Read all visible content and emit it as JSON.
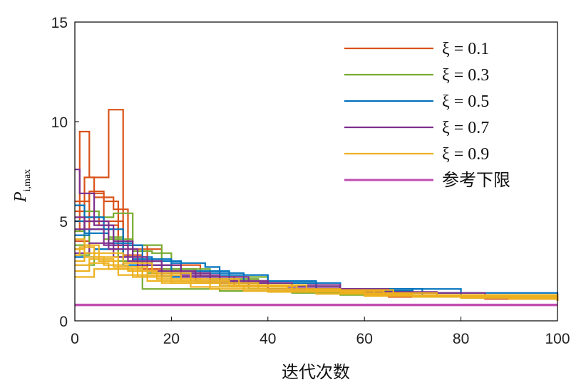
{
  "chart_data": {
    "type": "line",
    "title": "",
    "xlabel": "迭代次数",
    "ylabel": "P",
    "ylabel_subscript": "i,max",
    "xlim": [
      0,
      100
    ],
    "ylim": [
      0,
      15
    ],
    "x_ticks": [
      "0",
      "20",
      "40",
      "60",
      "80",
      "100"
    ],
    "y_ticks": [
      "0",
      "5",
      "10",
      "15"
    ],
    "grid": false,
    "legend_position": "top-right",
    "series": [
      {
        "name": "ξ = 0.1",
        "color": "#d95319",
        "runs": [
          [
            [
              0,
              4.5
            ],
            [
              1,
              9.5
            ],
            [
              3,
              7.2
            ],
            [
              7,
              7.2
            ],
            [
              7,
              10.6
            ],
            [
              10,
              3.3
            ],
            [
              14,
              2.8
            ],
            [
              22,
              2.3
            ],
            [
              30,
              2.0
            ],
            [
              40,
              1.7
            ],
            [
              55,
              1.4
            ],
            [
              70,
              1.2
            ],
            [
              100,
              1.0
            ]
          ],
          [
            [
              0,
              5.5
            ],
            [
              2,
              7.2
            ],
            [
              4,
              6.2
            ],
            [
              8,
              5.6
            ],
            [
              11,
              3.6
            ],
            [
              18,
              2.8
            ],
            [
              26,
              2.2
            ],
            [
              35,
              1.9
            ],
            [
              50,
              1.5
            ],
            [
              65,
              1.3
            ],
            [
              85,
              1.1
            ],
            [
              100,
              1.0
            ]
          ],
          [
            [
              0,
              6.0
            ],
            [
              3,
              6.5
            ],
            [
              6,
              6.0
            ],
            [
              9,
              3.2
            ],
            [
              13,
              2.6
            ],
            [
              20,
              2.2
            ],
            [
              33,
              1.8
            ],
            [
              48,
              1.5
            ],
            [
              70,
              1.2
            ],
            [
              100,
              1.05
            ]
          ],
          [
            [
              0,
              3.6
            ],
            [
              2,
              5.2
            ],
            [
              5,
              4.8
            ],
            [
              9,
              3.8
            ],
            [
              15,
              2.6
            ],
            [
              25,
              2.0
            ],
            [
              40,
              1.6
            ],
            [
              60,
              1.3
            ],
            [
              100,
              1.0
            ]
          ],
          [
            [
              0,
              4.0
            ],
            [
              3,
              6.4
            ],
            [
              6,
              5.0
            ],
            [
              10,
              3.0
            ],
            [
              16,
              2.4
            ],
            [
              28,
              1.9
            ],
            [
              45,
              1.5
            ],
            [
              65,
              1.2
            ],
            [
              100,
              1.0
            ]
          ]
        ]
      },
      {
        "name": "ξ = 0.3",
        "color": "#77ac30",
        "runs": [
          [
            [
              0,
              3.8
            ],
            [
              2,
              5.5
            ],
            [
              5,
              5.2
            ],
            [
              8,
              5.4
            ],
            [
              12,
              3.5
            ],
            [
              16,
              3.4
            ],
            [
              20,
              2.6
            ],
            [
              28,
              2.1
            ],
            [
              38,
              1.8
            ],
            [
              50,
              1.5
            ],
            [
              70,
              1.2
            ],
            [
              100,
              1.0
            ]
          ],
          [
            [
              0,
              3.3
            ],
            [
              3,
              4.6
            ],
            [
              7,
              4.2
            ],
            [
              10,
              3.0
            ],
            [
              14,
              1.6
            ],
            [
              20,
              1.6
            ],
            [
              30,
              1.5
            ],
            [
              45,
              1.4
            ],
            [
              60,
              1.3
            ],
            [
              100,
              1.05
            ]
          ],
          [
            [
              0,
              4.5
            ],
            [
              2,
              5.0
            ],
            [
              6,
              4.1
            ],
            [
              12,
              3.8
            ],
            [
              18,
              2.6
            ],
            [
              25,
              2.2
            ],
            [
              40,
              1.7
            ],
            [
              55,
              1.4
            ],
            [
              80,
              1.15
            ],
            [
              100,
              1.0
            ]
          ],
          [
            [
              0,
              2.8
            ],
            [
              4,
              3.6
            ],
            [
              9,
              3.0
            ],
            [
              15,
              2.4
            ],
            [
              24,
              1.9
            ],
            [
              36,
              1.6
            ],
            [
              55,
              1.3
            ],
            [
              100,
              1.0
            ]
          ]
        ]
      },
      {
        "name": "ξ = 0.5",
        "color": "#0072bd",
        "runs": [
          [
            [
              0,
              5.8
            ],
            [
              2,
              5.2
            ],
            [
              6,
              4.6
            ],
            [
              10,
              3.2
            ],
            [
              16,
              2.8
            ],
            [
              20,
              2.9
            ],
            [
              27,
              2.7
            ],
            [
              30,
              2.3
            ],
            [
              40,
              1.9
            ],
            [
              55,
              1.6
            ],
            [
              70,
              1.4
            ],
            [
              100,
              1.15
            ]
          ],
          [
            [
              0,
              4.3
            ],
            [
              3,
              4.6
            ],
            [
              8,
              3.8
            ],
            [
              14,
              3.0
            ],
            [
              22,
              2.4
            ],
            [
              35,
              1.9
            ],
            [
              50,
              1.6
            ],
            [
              72,
              1.3
            ],
            [
              100,
              1.15
            ]
          ],
          [
            [
              0,
              3.2
            ],
            [
              4,
              3.6
            ],
            [
              10,
              2.8
            ],
            [
              18,
              2.2
            ],
            [
              30,
              1.8
            ],
            [
              48,
              1.5
            ],
            [
              70,
              1.25
            ],
            [
              100,
              1.1
            ]
          ],
          [
            [
              0,
              5.0
            ],
            [
              2,
              4.4
            ],
            [
              7,
              3.9
            ],
            [
              12,
              3.1
            ],
            [
              20,
              2.5
            ],
            [
              32,
              2.0
            ],
            [
              50,
              1.6
            ],
            [
              80,
              1.2
            ],
            [
              100,
              1.1
            ]
          ]
        ]
      },
      {
        "name": "ξ = 0.7",
        "color": "#7e2f8e",
        "runs": [
          [
            [
              0,
              7.6
            ],
            [
              1,
              6.4
            ],
            [
              4,
              4.8
            ],
            [
              8,
              4.0
            ],
            [
              12,
              3.0
            ],
            [
              18,
              2.4
            ],
            [
              28,
              2.0
            ],
            [
              40,
              1.7
            ],
            [
              55,
              1.45
            ],
            [
              75,
              1.2
            ],
            [
              100,
              1.05
            ]
          ],
          [
            [
              0,
              5.2
            ],
            [
              2,
              4.6
            ],
            [
              6,
              3.8
            ],
            [
              11,
              3.0
            ],
            [
              18,
              2.3
            ],
            [
              30,
              1.9
            ],
            [
              45,
              1.6
            ],
            [
              65,
              1.3
            ],
            [
              100,
              1.05
            ]
          ],
          [
            [
              0,
              3.4
            ],
            [
              3,
              3.9
            ],
            [
              8,
              3.2
            ],
            [
              15,
              2.5
            ],
            [
              25,
              2.0
            ],
            [
              40,
              1.6
            ],
            [
              60,
              1.3
            ],
            [
              100,
              1.0
            ]
          ],
          [
            [
              0,
              4.6
            ],
            [
              2,
              5.0
            ],
            [
              7,
              3.6
            ],
            [
              13,
              2.8
            ],
            [
              22,
              2.2
            ],
            [
              36,
              1.8
            ],
            [
              55,
              1.4
            ],
            [
              85,
              1.15
            ],
            [
              100,
              1.05
            ]
          ]
        ]
      },
      {
        "name": "ξ = 0.9",
        "color": "#edb120",
        "runs": [
          [
            [
              0,
              3.0
            ],
            [
              2,
              3.4
            ],
            [
              5,
              3.0
            ],
            [
              9,
              2.6
            ],
            [
              14,
              2.3
            ],
            [
              20,
              2.0
            ],
            [
              30,
              1.8
            ],
            [
              45,
              1.5
            ],
            [
              60,
              1.3
            ],
            [
              80,
              1.15
            ],
            [
              100,
              1.0
            ]
          ],
          [
            [
              0,
              2.5
            ],
            [
              3,
              2.9
            ],
            [
              7,
              2.6
            ],
            [
              12,
              2.2
            ],
            [
              18,
              1.9
            ],
            [
              28,
              1.6
            ],
            [
              40,
              1.45
            ],
            [
              60,
              1.25
            ],
            [
              100,
              1.0
            ]
          ],
          [
            [
              0,
              3.6
            ],
            [
              2,
              3.2
            ],
            [
              6,
              2.8
            ],
            [
              11,
              2.5
            ],
            [
              17,
              2.1
            ],
            [
              26,
              1.9
            ],
            [
              38,
              1.6
            ],
            [
              55,
              1.4
            ],
            [
              75,
              1.2
            ],
            [
              100,
              1.05
            ]
          ],
          [
            [
              0,
              2.2
            ],
            [
              4,
              2.6
            ],
            [
              9,
              2.3
            ],
            [
              15,
              2.0
            ],
            [
              24,
              1.7
            ],
            [
              35,
              1.5
            ],
            [
              50,
              1.35
            ],
            [
              70,
              1.2
            ],
            [
              100,
              1.0
            ]
          ],
          [
            [
              0,
              4.1
            ],
            [
              2,
              3.8
            ],
            [
              5,
              3.4
            ],
            [
              10,
              2.9
            ],
            [
              16,
              2.4
            ],
            [
              24,
              2.1
            ],
            [
              34,
              1.8
            ],
            [
              48,
              1.55
            ],
            [
              66,
              1.3
            ],
            [
              100,
              1.05
            ]
          ],
          [
            [
              0,
              2.8
            ],
            [
              3,
              3.1
            ],
            [
              8,
              2.7
            ],
            [
              13,
              2.2
            ],
            [
              20,
              1.9
            ],
            [
              30,
              1.7
            ],
            [
              44,
              1.5
            ],
            [
              62,
              1.3
            ],
            [
              100,
              1.0
            ]
          ],
          [
            [
              0,
              3.3
            ],
            [
              1,
              3.7
            ],
            [
              4,
              3.2
            ],
            [
              9,
              2.7
            ],
            [
              15,
              2.3
            ],
            [
              22,
              2.0
            ],
            [
              32,
              1.75
            ],
            [
              46,
              1.5
            ],
            [
              64,
              1.3
            ],
            [
              90,
              1.1
            ],
            [
              100,
              1.0
            ]
          ]
        ]
      },
      {
        "name": "参考下限",
        "color": "#c04fb0",
        "runs": [
          [
            [
              0,
              0.8
            ],
            [
              100,
              0.8
            ]
          ]
        ]
      }
    ]
  }
}
